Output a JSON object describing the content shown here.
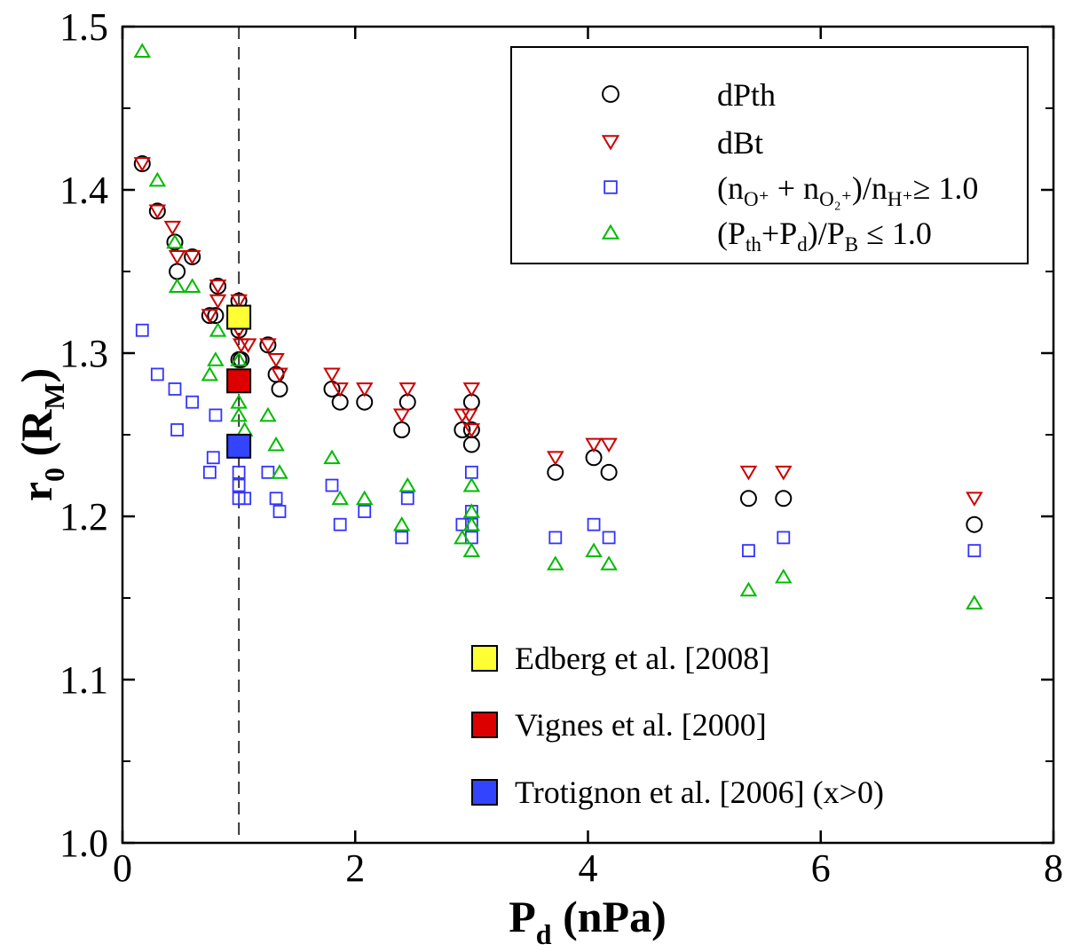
{
  "chart_data": {
    "type": "scatter",
    "title": "",
    "xlabel": {
      "main": "P",
      "sub": "d",
      "rest": " (nPa)"
    },
    "ylabel": {
      "main": "r",
      "sub": "0",
      "open": " (R",
      "sub2": "M",
      "close": ")"
    },
    "xlim": [
      0,
      8
    ],
    "ylim": [
      1.0,
      1.5
    ],
    "x_ticks": [
      0,
      2,
      4,
      6,
      8
    ],
    "x_tick_labels": [
      "0",
      "2",
      "4",
      "6",
      "8"
    ],
    "y_ticks": [
      1.0,
      1.1,
      1.2,
      1.3,
      1.4,
      1.5
    ],
    "y_tick_labels": [
      "1.0",
      "1.1",
      "1.2",
      "1.3",
      "1.4",
      "1.5"
    ],
    "reference_line": {
      "x": 1.0,
      "style": "dashed"
    },
    "legend": {
      "placement": "top-right",
      "entries": [
        {
          "series": "dPth",
          "parts": [
            [
              "dPth",
              ""
            ]
          ]
        },
        {
          "series": "dBt",
          "parts": [
            [
              "dBt",
              ""
            ]
          ]
        },
        {
          "series": "ion",
          "parts": [
            [
              "(n",
              ""
            ],
            [
              "O⁺",
              "sub"
            ],
            [
              " + n",
              ""
            ],
            [
              "O₂⁺",
              "sub"
            ],
            [
              ")/n",
              ""
            ],
            [
              "H⁺",
              "sub"
            ],
            [
              "≥ 1.0",
              ""
            ]
          ]
        },
        {
          "series": "pressure",
          "parts": [
            [
              "(P",
              ""
            ],
            [
              "th",
              "sub"
            ],
            [
              "+P",
              ""
            ],
            [
              "d",
              "sub"
            ],
            [
              ")/P",
              ""
            ],
            [
              "B",
              "sub"
            ],
            [
              " ≤ 1.0",
              ""
            ]
          ]
        }
      ]
    },
    "series": [
      {
        "name": "dPth",
        "marker": "circle",
        "color": "#000000",
        "points": [
          [
            0.17,
            1.416
          ],
          [
            0.3,
            1.387
          ],
          [
            0.45,
            1.368
          ],
          [
            0.47,
            1.35
          ],
          [
            0.6,
            1.359
          ],
          [
            0.75,
            1.323
          ],
          [
            0.82,
            1.341
          ],
          [
            0.8,
            1.323
          ],
          [
            1.0,
            1.332
          ],
          [
            1.0,
            1.314
          ],
          [
            1.0,
            1.296
          ],
          [
            1.02,
            1.296
          ],
          [
            1.25,
            1.305
          ],
          [
            1.32,
            1.287
          ],
          [
            1.35,
            1.278
          ],
          [
            1.8,
            1.278
          ],
          [
            1.87,
            1.27
          ],
          [
            2.08,
            1.27
          ],
          [
            2.4,
            1.253
          ],
          [
            2.45,
            1.27
          ],
          [
            2.92,
            1.253
          ],
          [
            3.0,
            1.27
          ],
          [
            3.0,
            1.253
          ],
          [
            3.0,
            1.244
          ],
          [
            3.72,
            1.227
          ],
          [
            4.05,
            1.236
          ],
          [
            4.18,
            1.227
          ],
          [
            5.38,
            1.211
          ],
          [
            5.68,
            1.211
          ],
          [
            7.32,
            1.195
          ]
        ]
      },
      {
        "name": "dBt",
        "marker": "triangle-down",
        "color": "#cc0000",
        "points": [
          [
            0.17,
            1.416
          ],
          [
            0.3,
            1.387
          ],
          [
            0.43,
            1.377
          ],
          [
            0.47,
            1.359
          ],
          [
            0.6,
            1.359
          ],
          [
            0.75,
            1.323
          ],
          [
            0.82,
            1.332
          ],
          [
            0.82,
            1.341
          ],
          [
            1.0,
            1.332
          ],
          [
            1.0,
            1.314
          ],
          [
            1.02,
            1.305
          ],
          [
            1.08,
            1.305
          ],
          [
            1.25,
            1.305
          ],
          [
            1.32,
            1.296
          ],
          [
            1.35,
            1.287
          ],
          [
            1.8,
            1.287
          ],
          [
            1.87,
            1.278
          ],
          [
            2.08,
            1.278
          ],
          [
            2.4,
            1.262
          ],
          [
            2.45,
            1.278
          ],
          [
            2.92,
            1.262
          ],
          [
            3.0,
            1.278
          ],
          [
            2.98,
            1.262
          ],
          [
            3.0,
            1.253
          ],
          [
            3.72,
            1.236
          ],
          [
            4.05,
            1.244
          ],
          [
            4.18,
            1.244
          ],
          [
            5.38,
            1.227
          ],
          [
            5.68,
            1.227
          ],
          [
            7.32,
            1.211
          ]
        ]
      },
      {
        "name": "ion",
        "marker": "square",
        "color": "#3333ff",
        "points": [
          [
            0.17,
            1.314
          ],
          [
            0.3,
            1.287
          ],
          [
            0.45,
            1.278
          ],
          [
            0.47,
            1.253
          ],
          [
            0.6,
            1.27
          ],
          [
            0.75,
            1.227
          ],
          [
            0.78,
            1.236
          ],
          [
            0.8,
            1.262
          ],
          [
            1.0,
            1.227
          ],
          [
            1.0,
            1.219
          ],
          [
            1.0,
            1.211
          ],
          [
            1.05,
            1.211
          ],
          [
            1.25,
            1.227
          ],
          [
            1.32,
            1.211
          ],
          [
            1.35,
            1.203
          ],
          [
            1.8,
            1.219
          ],
          [
            1.87,
            1.195
          ],
          [
            2.08,
            1.203
          ],
          [
            2.4,
            1.187
          ],
          [
            2.45,
            1.211
          ],
          [
            2.92,
            1.195
          ],
          [
            3.0,
            1.227
          ],
          [
            3.0,
            1.203
          ],
          [
            3.0,
            1.195
          ],
          [
            3.0,
            1.187
          ],
          [
            3.72,
            1.187
          ],
          [
            4.05,
            1.195
          ],
          [
            4.18,
            1.187
          ],
          [
            5.38,
            1.179
          ],
          [
            5.68,
            1.187
          ],
          [
            7.32,
            1.179
          ]
        ]
      },
      {
        "name": "pressure",
        "marker": "triangle-up",
        "color": "#00bb00",
        "points": [
          [
            0.17,
            1.485
          ],
          [
            0.3,
            1.406
          ],
          [
            0.45,
            1.368
          ],
          [
            0.47,
            1.341
          ],
          [
            0.6,
            1.341
          ],
          [
            0.75,
            1.287
          ],
          [
            0.8,
            1.296
          ],
          [
            0.82,
            1.314
          ],
          [
            1.0,
            1.296
          ],
          [
            1.0,
            1.27
          ],
          [
            1.0,
            1.262
          ],
          [
            1.05,
            1.253
          ],
          [
            1.25,
            1.262
          ],
          [
            1.32,
            1.244
          ],
          [
            1.35,
            1.227
          ],
          [
            1.8,
            1.236
          ],
          [
            1.87,
            1.211
          ],
          [
            2.08,
            1.211
          ],
          [
            2.4,
            1.195
          ],
          [
            2.45,
            1.219
          ],
          [
            2.92,
            1.187
          ],
          [
            3.0,
            1.219
          ],
          [
            3.0,
            1.203
          ],
          [
            3.0,
            1.195
          ],
          [
            3.0,
            1.179
          ],
          [
            3.72,
            1.171
          ],
          [
            4.05,
            1.179
          ],
          [
            4.18,
            1.171
          ],
          [
            5.38,
            1.155
          ],
          [
            5.68,
            1.163
          ],
          [
            7.32,
            1.147
          ]
        ]
      }
    ],
    "references": [
      {
        "label": "Edberg et al. [2008]",
        "x": 1.0,
        "y": 1.322,
        "color": "#ffff33"
      },
      {
        "label": "Vignes et al. [2000]",
        "x": 1.0,
        "y": 1.283,
        "color": "#dd0000"
      },
      {
        "label": "Trotignon et al. [2006] (x>0)",
        "x": 1.0,
        "y": 1.243,
        "color": "#3344ff"
      }
    ]
  }
}
